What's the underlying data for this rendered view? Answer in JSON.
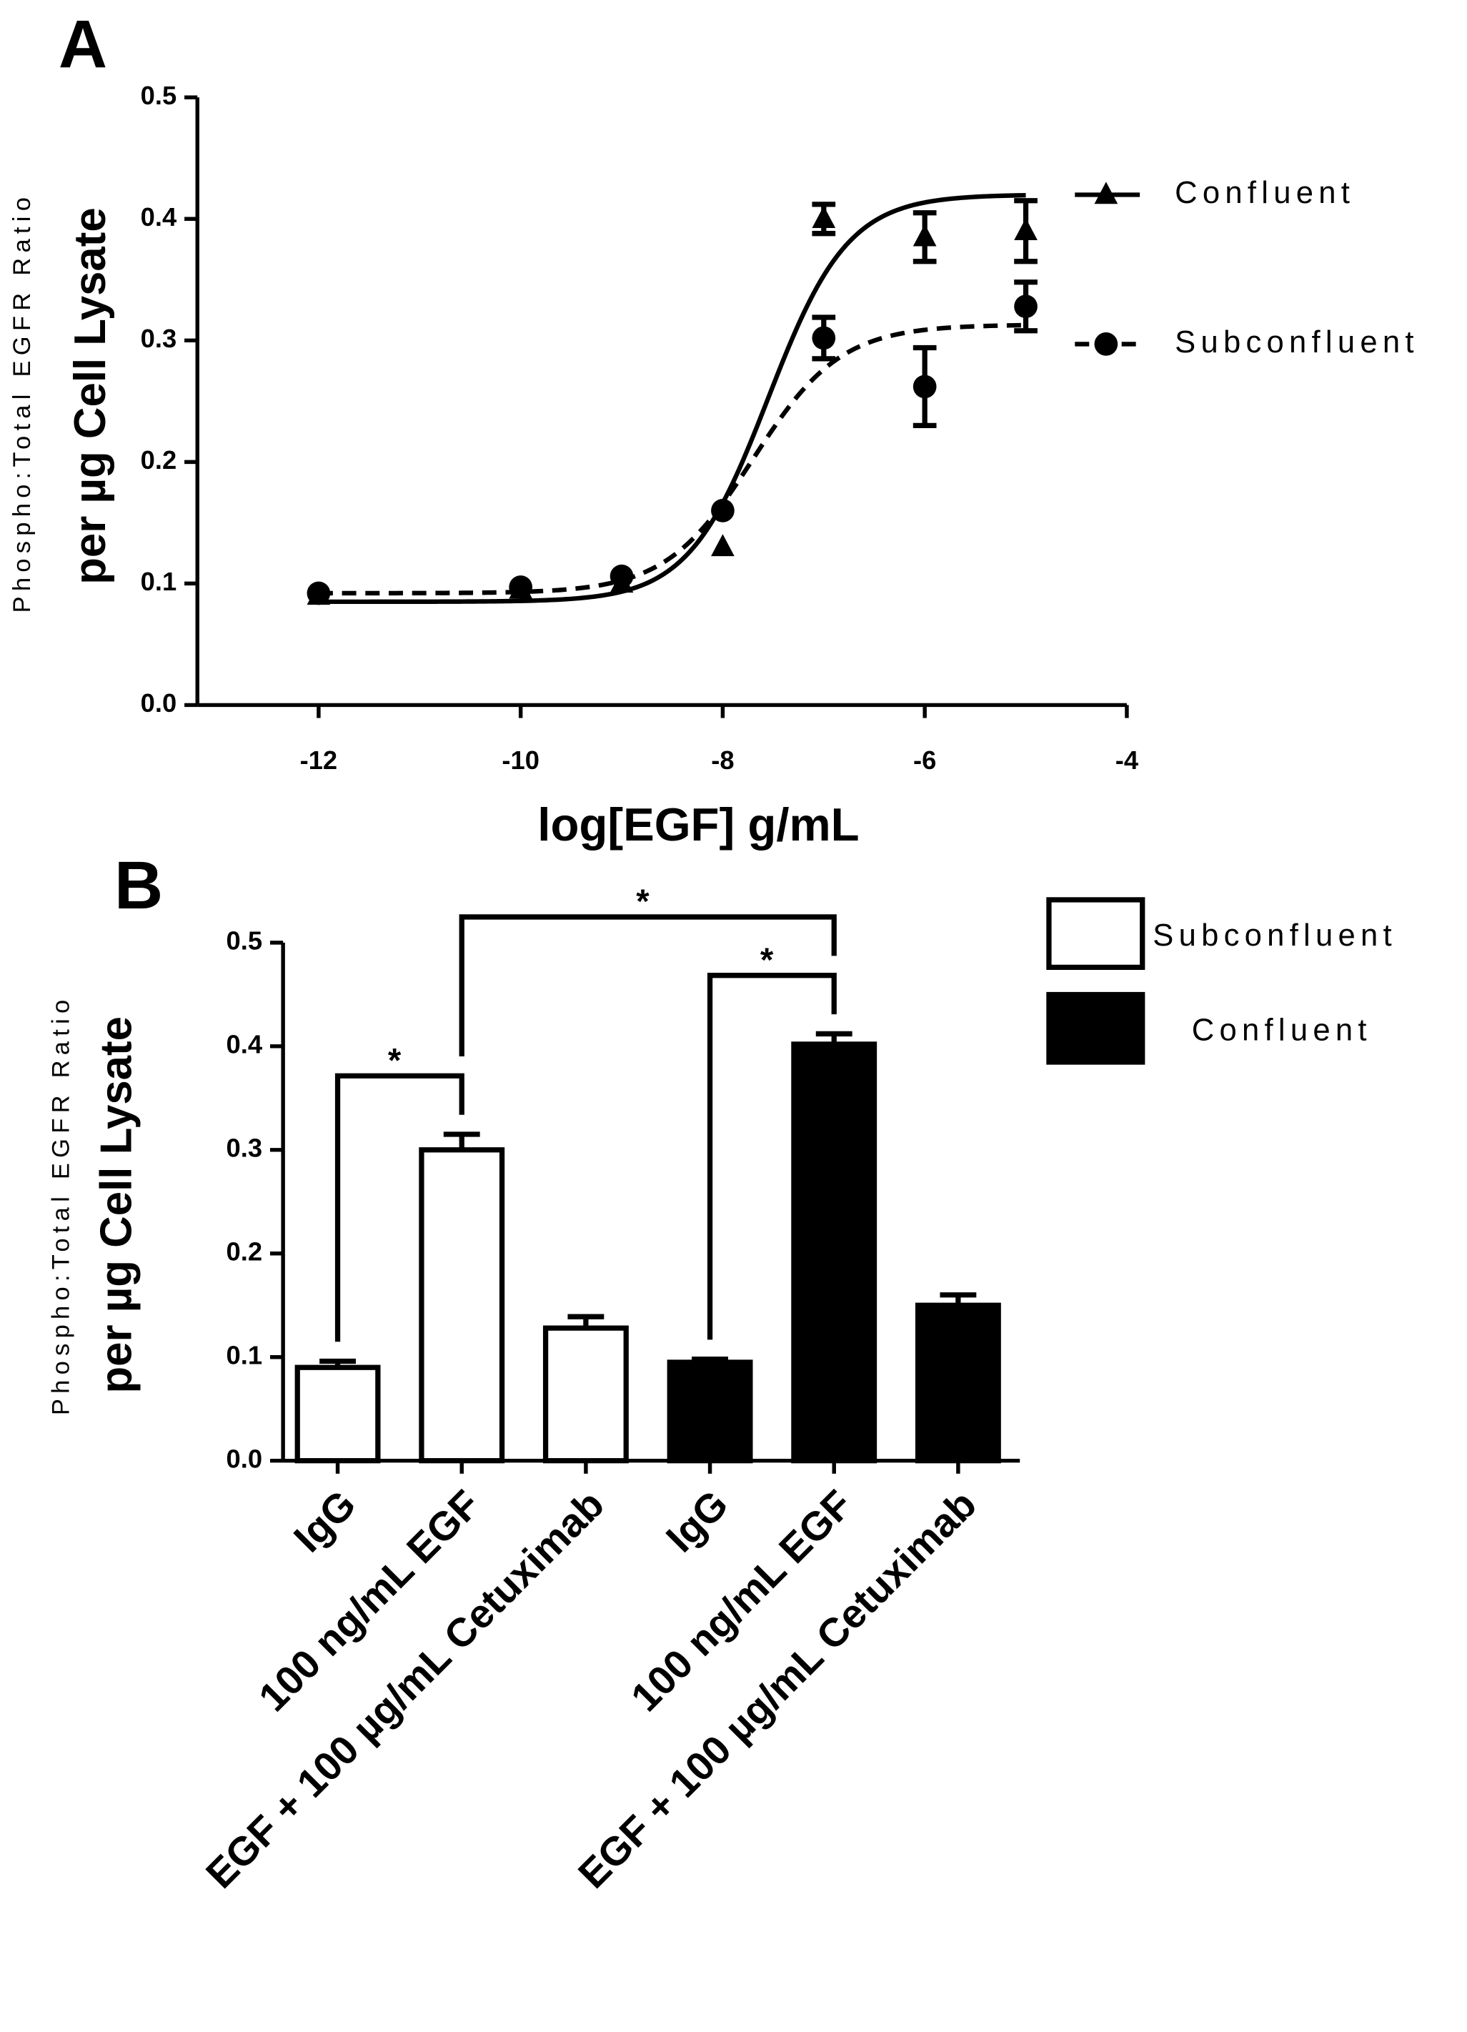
{
  "chart_data": [
    {
      "type": "line",
      "panel": "A",
      "ylabel": [
        "Phospho:Total EGFR Ratio",
        "per µg Cell Lysate"
      ],
      "xlabel": "log[EGF] g/mL",
      "xlim": [
        -13.2,
        -4
      ],
      "xticks": [
        -12,
        -10,
        -8,
        -6,
        -4
      ],
      "ylim": [
        0,
        0.5
      ],
      "yticks": [
        {
          "value": 0,
          "label": "0.0"
        },
        0.1,
        0.2,
        0.3,
        0.4,
        0.5
      ],
      "series": [
        {
          "name": "Confluent",
          "color": "#000000",
          "marker": "triangle",
          "dash": false,
          "x": [
            -12,
            -10,
            -9,
            -8,
            -7,
            -6,
            -5
          ],
          "values": [
            0.09,
            0.095,
            0.1,
            0.13,
            0.4,
            0.385,
            0.39
          ],
          "errors": [
            null,
            null,
            null,
            null,
            0.012,
            0.02,
            0.025
          ],
          "fit": {
            "bottom": 0.085,
            "top": 0.42,
            "logec50": -7.55,
            "hill": 1.1
          }
        },
        {
          "name": "Subconfluent",
          "color": "#000000",
          "marker": "circle",
          "dash": true,
          "x": [
            -12,
            -10,
            -9,
            -8,
            -7,
            -6,
            -5
          ],
          "values": [
            0.092,
            0.097,
            0.106,
            0.16,
            0.302,
            0.262,
            0.328
          ],
          "errors": [
            null,
            null,
            null,
            null,
            0.017,
            0.032,
            0.02
          ],
          "fit": {
            "bottom": 0.092,
            "top": 0.313,
            "logec50": -7.7,
            "hill": 1.0
          }
        }
      ]
    },
    {
      "type": "bar",
      "panel": "B",
      "ylabel": [
        "Phospho:Total EGFR Ratio",
        "per µg Cell Lysate"
      ],
      "categories": [
        "IgG",
        "100 ng/mL EGF",
        "EGF + 100 µg/mL Cetuximab",
        "IgG",
        "100 ng/mL EGF",
        "EGF + 100 µg/mL Cetuximab"
      ],
      "ylim": [
        0,
        0.5
      ],
      "yticks": [
        {
          "value": 0,
          "label": "0.0"
        },
        0.1,
        0.2,
        0.3,
        0.4,
        0.5
      ],
      "series": [
        {
          "name": "Subconfluent",
          "color": "#ffffff",
          "values": [
            0.09,
            0.3,
            0.128,
            null,
            null,
            null
          ],
          "errors": [
            0.006,
            0.015,
            0.011,
            null,
            null,
            null
          ]
        },
        {
          "name": "Confluent",
          "color": "#000000",
          "values": [
            null,
            null,
            null,
            0.095,
            0.402,
            0.15
          ],
          "errors": [
            null,
            null,
            null,
            0.003,
            0.01,
            0.01
          ]
        }
      ],
      "comparisons": [
        {
          "from": 0,
          "to": 1,
          "label": "*"
        },
        {
          "from": 3,
          "to": 4,
          "label": "*"
        },
        {
          "from": 1,
          "to": 4,
          "label": "*"
        }
      ]
    }
  ]
}
